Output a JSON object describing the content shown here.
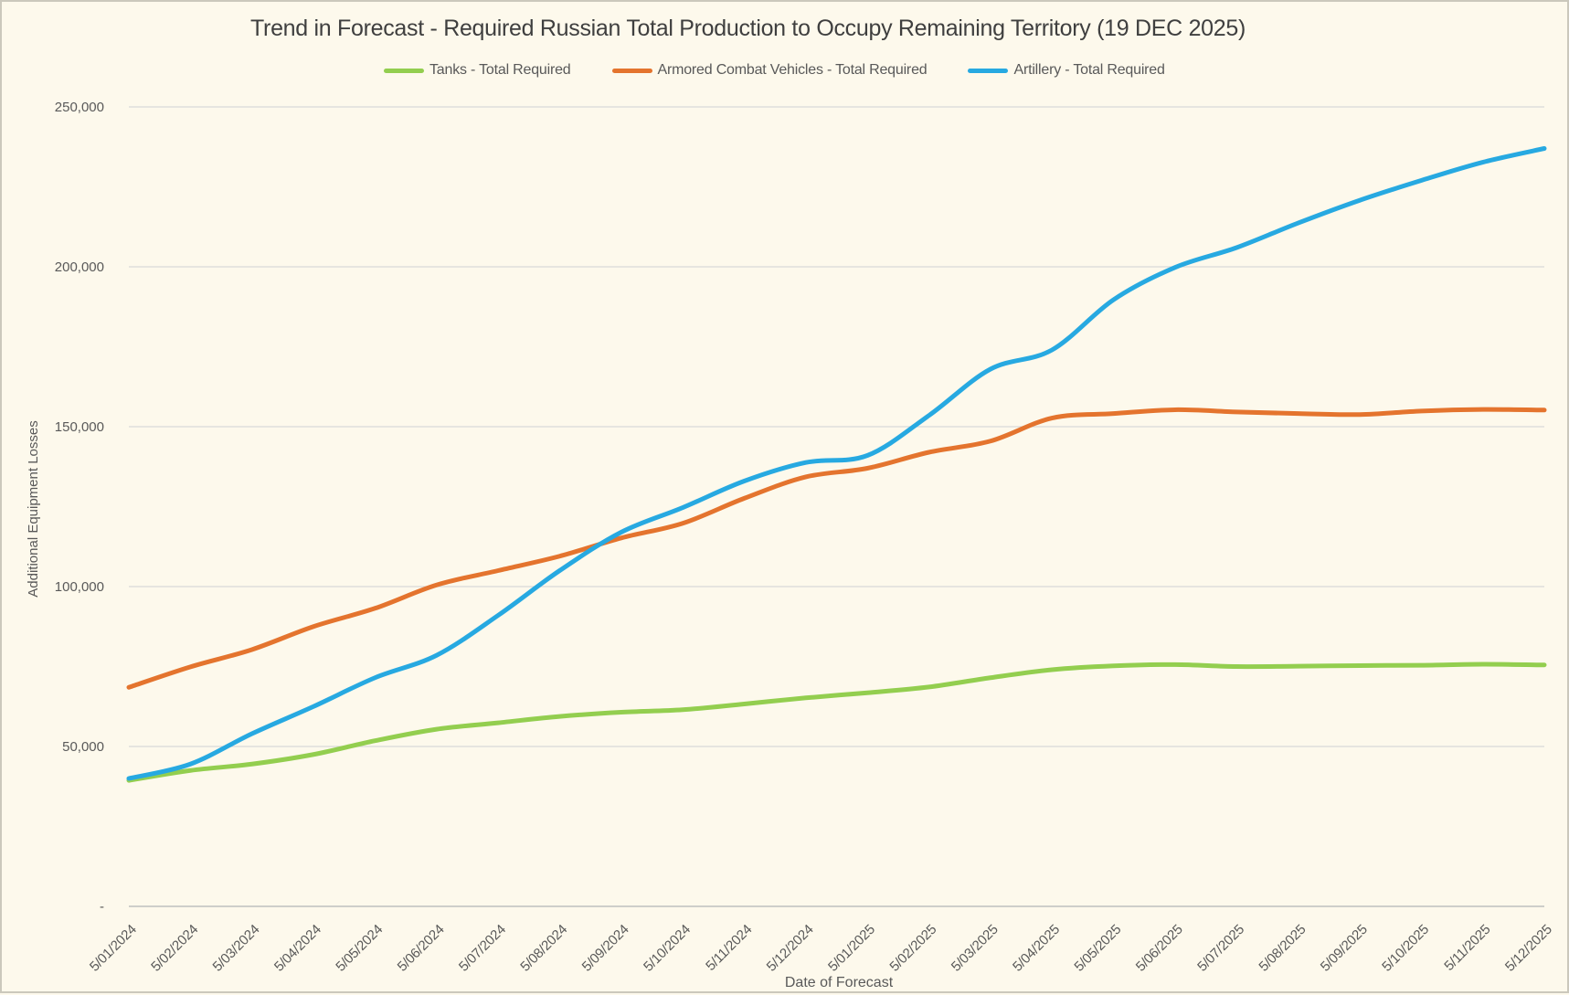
{
  "chart": {
    "title": "Trend in Forecast - Required Russian Total Production to Occupy Remaining Territory (19 DEC 2025)"
  },
  "colors": {
    "background": "#FDF9EC",
    "gridline": "#D9D9D9",
    "axis_line": "#BFBFBF",
    "tick_text": "#595959",
    "title_text": "#3F3F3F"
  },
  "chart_data": {
    "type": "line",
    "title": "Trend in Forecast - Required Russian Total Production to Occupy Remaining Territory (19 DEC 2025)",
    "xlabel": "Date of Forecast",
    "ylabel": "Additional Equipment Losses",
    "ylim": [
      0,
      250000
    ],
    "grid": true,
    "legend_position": "top",
    "smoothed_lines": true,
    "categories": [
      "5/01/2024",
      "5/02/2024",
      "5/03/2024",
      "5/04/2024",
      "5/05/2024",
      "5/06/2024",
      "5/07/2024",
      "5/08/2024",
      "5/09/2024",
      "5/10/2024",
      "5/11/2024",
      "5/12/2024",
      "5/01/2025",
      "5/02/2025",
      "5/03/2025",
      "5/04/2025",
      "5/05/2025",
      "5/06/2025",
      "5/07/2025",
      "5/08/2025",
      "5/09/2025",
      "5/10/2025",
      "5/11/2025",
      "5/12/2025"
    ],
    "y_axis": {
      "ticks": [
        {
          "value": 0,
          "label": "-"
        },
        {
          "value": 50000,
          "label": "50,000"
        },
        {
          "value": 100000,
          "label": "100,000"
        },
        {
          "value": 150000,
          "label": "150,000"
        },
        {
          "value": 200000,
          "label": "200,000"
        },
        {
          "value": 250000,
          "label": "250,000"
        }
      ]
    },
    "series": [
      {
        "name": "Tanks - Total Required",
        "color": "#93CE4F",
        "values": [
          39400,
          42500,
          44500,
          47500,
          51800,
          55400,
          57400,
          59400,
          60700,
          61500,
          63300,
          65200,
          66800,
          68600,
          71500,
          74000,
          75200,
          75600,
          75000,
          75100,
          75300,
          75400,
          75700,
          75500
        ]
      },
      {
        "name": "Armored Combat Vehicles - Total Required",
        "color": "#E4742E",
        "values": [
          68500,
          74900,
          80300,
          87500,
          93200,
          100500,
          105000,
          109500,
          115200,
          119800,
          127600,
          134300,
          137000,
          142000,
          145500,
          152700,
          154100,
          155300,
          154600,
          154100,
          153800,
          154900,
          155400,
          155200
        ]
      },
      {
        "name": "Artillery - Total Required",
        "color": "#27A9E1",
        "values": [
          40000,
          44500,
          54000,
          62500,
          71500,
          78500,
          91000,
          105000,
          117000,
          124700,
          133000,
          138800,
          141000,
          153500,
          168000,
          174000,
          189700,
          199800,
          206000,
          213700,
          220800,
          227000,
          232700,
          237000
        ]
      }
    ]
  }
}
